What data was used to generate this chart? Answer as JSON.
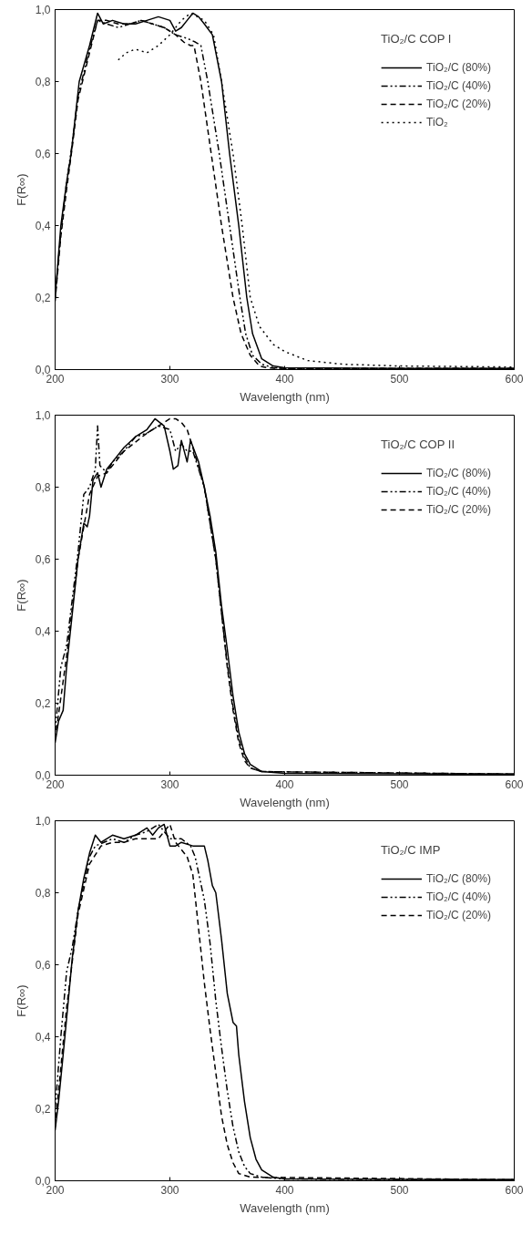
{
  "chart_data": [
    {
      "type": "line",
      "legend_title": "TiO₂/C COP I",
      "xlabel": "Wavelength (nm)",
      "ylabel": "F(R∞)",
      "xlim": [
        200,
        600
      ],
      "ylim": [
        0,
        1
      ],
      "xticks": [
        200,
        300,
        400,
        500,
        600
      ],
      "yticks": [
        {
          "value": 0,
          "label": "0,0"
        },
        {
          "value": 0.2,
          "label": "0,2"
        },
        {
          "value": 0.4,
          "label": "0,4"
        },
        {
          "value": 0.6,
          "label": "0,6"
        },
        {
          "value": 0.8,
          "label": "0,8"
        },
        {
          "value": 1,
          "label": "1,0"
        }
      ],
      "grid": false,
      "legend": "top right",
      "series": [
        {
          "name": "TiO₂/C (80%)",
          "color": "#000000",
          "line_style": "solid",
          "x": [
            200,
            205,
            210,
            214,
            221,
            230,
            237,
            242,
            250,
            260,
            270,
            280,
            290,
            300,
            305,
            310,
            315,
            320,
            325,
            330,
            337,
            345,
            352,
            360,
            367,
            372,
            380,
            390,
            400,
            500,
            600
          ],
          "values": [
            0.2,
            0.4,
            0.52,
            0.6,
            0.8,
            0.9,
            0.99,
            0.96,
            0.97,
            0.96,
            0.96,
            0.97,
            0.98,
            0.97,
            0.94,
            0.95,
            0.97,
            0.99,
            0.98,
            0.96,
            0.93,
            0.8,
            0.6,
            0.4,
            0.2,
            0.1,
            0.03,
            0.01,
            0.005,
            0.003,
            0.003
          ]
        },
        {
          "name": "TiO₂/C (40%)",
          "color": "#000000",
          "line_style": "dashdot",
          "x": [
            200,
            205,
            210,
            215,
            220,
            230,
            237,
            245,
            255,
            265,
            275,
            285,
            295,
            305,
            315,
            322,
            327,
            333,
            343,
            352,
            361,
            366,
            372,
            380,
            390,
            400,
            500,
            600
          ],
          "values": [
            0.2,
            0.38,
            0.52,
            0.63,
            0.76,
            0.89,
            0.97,
            0.96,
            0.95,
            0.96,
            0.97,
            0.96,
            0.95,
            0.93,
            0.92,
            0.91,
            0.9,
            0.8,
            0.6,
            0.4,
            0.2,
            0.1,
            0.04,
            0.015,
            0.005,
            0.003,
            0.003,
            0.003
          ]
        },
        {
          "name": "TiO₂/C (20%)",
          "color": "#000000",
          "line_style": "dashed",
          "x": [
            200,
            205,
            210,
            215,
            220,
            230,
            237,
            245,
            255,
            265,
            275,
            285,
            295,
            305,
            312,
            318,
            321,
            327,
            336,
            345,
            355,
            362,
            370,
            378,
            385,
            400,
            500,
            600
          ],
          "values": [
            0.19,
            0.37,
            0.5,
            0.62,
            0.75,
            0.88,
            0.97,
            0.97,
            0.96,
            0.96,
            0.97,
            0.96,
            0.95,
            0.93,
            0.91,
            0.9,
            0.9,
            0.8,
            0.6,
            0.4,
            0.2,
            0.1,
            0.04,
            0.01,
            0.005,
            0.003,
            0.003,
            0.003
          ]
        },
        {
          "name": "TiO₂",
          "color": "#000000",
          "line_style": "dotted",
          "x": [
            255,
            262,
            270,
            280,
            290,
            300,
            310,
            318,
            330,
            338,
            345,
            355,
            363,
            370,
            378,
            390,
            400,
            420,
            450,
            500,
            600
          ],
          "values": [
            0.86,
            0.88,
            0.89,
            0.88,
            0.9,
            0.93,
            0.97,
            0.99,
            0.97,
            0.93,
            0.8,
            0.6,
            0.4,
            0.2,
            0.12,
            0.07,
            0.05,
            0.025,
            0.015,
            0.01,
            0.007
          ]
        }
      ]
    },
    {
      "type": "line",
      "legend_title": "TiO₂/C COP II",
      "xlabel": "Wavelength (nm)",
      "ylabel": "F(R∞)",
      "xlim": [
        200,
        600
      ],
      "ylim": [
        0,
        1
      ],
      "xticks": [
        200,
        300,
        400,
        500,
        600
      ],
      "yticks": [
        {
          "value": 0,
          "label": "0,0"
        },
        {
          "value": 0.2,
          "label": "0,2"
        },
        {
          "value": 0.4,
          "label": "0,4"
        },
        {
          "value": 0.6,
          "label": "0,6"
        },
        {
          "value": 0.8,
          "label": "0,8"
        },
        {
          "value": 1,
          "label": "1,0"
        }
      ],
      "grid": false,
      "legend": "top right",
      "series": [
        {
          "name": "TiO₂/C (80%)",
          "color": "#000000",
          "line_style": "solid",
          "x": [
            200,
            203,
            207,
            210,
            215,
            220,
            225,
            228,
            230,
            233,
            237,
            240,
            245,
            250,
            260,
            270,
            280,
            287,
            295,
            300,
            303,
            307,
            310,
            315,
            318,
            325,
            330,
            335,
            340,
            345,
            350,
            355,
            360,
            365,
            370,
            380,
            400,
            600
          ],
          "values": [
            0.09,
            0.15,
            0.18,
            0.3,
            0.45,
            0.6,
            0.7,
            0.69,
            0.72,
            0.82,
            0.84,
            0.8,
            0.85,
            0.87,
            0.91,
            0.94,
            0.96,
            0.99,
            0.97,
            0.9,
            0.85,
            0.86,
            0.93,
            0.87,
            0.93,
            0.87,
            0.8,
            0.72,
            0.62,
            0.47,
            0.35,
            0.22,
            0.12,
            0.06,
            0.03,
            0.01,
            0.005,
            0.003
          ]
        },
        {
          "name": "TiO₂/C (40%)",
          "color": "#000000",
          "line_style": "dashdot",
          "x": [
            200,
            205,
            210,
            220,
            225,
            230,
            235,
            237,
            239,
            245,
            250,
            260,
            270,
            280,
            290,
            300,
            305,
            310,
            315,
            320,
            330,
            340,
            345,
            350,
            355,
            360,
            365,
            370,
            380,
            600
          ],
          "values": [
            0.12,
            0.3,
            0.36,
            0.62,
            0.78,
            0.8,
            0.85,
            0.97,
            0.86,
            0.84,
            0.87,
            0.9,
            0.94,
            0.95,
            0.97,
            0.96,
            0.9,
            0.92,
            0.9,
            0.9,
            0.8,
            0.6,
            0.45,
            0.31,
            0.19,
            0.1,
            0.05,
            0.02,
            0.01,
            0.003
          ]
        },
        {
          "name": "TiO₂/C (20%)",
          "color": "#000000",
          "line_style": "dashed",
          "x": [
            200,
            210,
            220,
            230,
            237,
            245,
            260,
            280,
            290,
            300,
            305,
            310,
            315,
            320,
            330,
            340,
            345,
            350,
            355,
            360,
            365,
            370,
            380,
            600
          ],
          "values": [
            0.1,
            0.33,
            0.6,
            0.78,
            0.83,
            0.84,
            0.9,
            0.95,
            0.97,
            0.99,
            0.99,
            0.98,
            0.96,
            0.91,
            0.8,
            0.6,
            0.45,
            0.3,
            0.18,
            0.09,
            0.04,
            0.02,
            0.01,
            0.003
          ]
        }
      ]
    },
    {
      "type": "line",
      "legend_title": "TiO₂/C IMP",
      "xlabel": "Wavelength (nm)",
      "ylabel": "F(R∞)",
      "xlim": [
        200,
        600
      ],
      "ylim": [
        0,
        1
      ],
      "xticks": [
        200,
        300,
        400,
        500,
        600
      ],
      "yticks": [
        {
          "value": 0,
          "label": "0,0"
        },
        {
          "value": 0.2,
          "label": "0,2"
        },
        {
          "value": 0.4,
          "label": "0,4"
        },
        {
          "value": 0.6,
          "label": "0,6"
        },
        {
          "value": 0.8,
          "label": "0,8"
        },
        {
          "value": 1,
          "label": "1,0"
        }
      ],
      "grid": false,
      "legend": "top right",
      "series": [
        {
          "name": "TiO₂/C (80%)",
          "color": "#000000",
          "line_style": "solid",
          "x": [
            200,
            203,
            207,
            210,
            215,
            220,
            225,
            230,
            235,
            240,
            250,
            260,
            270,
            280,
            285,
            290,
            295,
            300,
            305,
            310,
            320,
            330,
            333,
            337,
            340,
            345,
            350,
            355,
            358,
            360,
            365,
            370,
            375,
            380,
            390,
            400,
            600
          ],
          "values": [
            0.14,
            0.22,
            0.35,
            0.45,
            0.62,
            0.75,
            0.84,
            0.91,
            0.96,
            0.94,
            0.96,
            0.95,
            0.96,
            0.98,
            0.96,
            0.98,
            0.99,
            0.93,
            0.93,
            0.94,
            0.93,
            0.93,
            0.89,
            0.82,
            0.8,
            0.67,
            0.52,
            0.44,
            0.43,
            0.35,
            0.22,
            0.12,
            0.06,
            0.03,
            0.01,
            0.005,
            0.003
          ]
        },
        {
          "name": "TiO₂/C (40%)",
          "color": "#000000",
          "line_style": "dashdot",
          "x": [
            200,
            205,
            210,
            215,
            220,
            230,
            235,
            250,
            260,
            270,
            280,
            290,
            300,
            310,
            318,
            322,
            330,
            335,
            340,
            345,
            350,
            355,
            360,
            365,
            370,
            380,
            400,
            600
          ],
          "values": [
            0.2,
            0.4,
            0.58,
            0.65,
            0.75,
            0.9,
            0.93,
            0.95,
            0.94,
            0.96,
            0.97,
            0.99,
            0.95,
            0.95,
            0.93,
            0.9,
            0.78,
            0.66,
            0.5,
            0.37,
            0.25,
            0.15,
            0.08,
            0.04,
            0.02,
            0.01,
            0.005,
            0.003
          ]
        },
        {
          "name": "TiO₂/C (20%)",
          "color": "#000000",
          "line_style": "dashed",
          "x": [
            200,
            210,
            220,
            230,
            240,
            250,
            260,
            270,
            280,
            290,
            300,
            305,
            310,
            315,
            320,
            325,
            330,
            335,
            340,
            345,
            350,
            355,
            360,
            370,
            600
          ],
          "values": [
            0.15,
            0.48,
            0.74,
            0.88,
            0.93,
            0.94,
            0.94,
            0.95,
            0.95,
            0.95,
            0.99,
            0.94,
            0.92,
            0.9,
            0.85,
            0.7,
            0.55,
            0.42,
            0.3,
            0.18,
            0.1,
            0.05,
            0.02,
            0.01,
            0.003
          ]
        }
      ]
    }
  ]
}
